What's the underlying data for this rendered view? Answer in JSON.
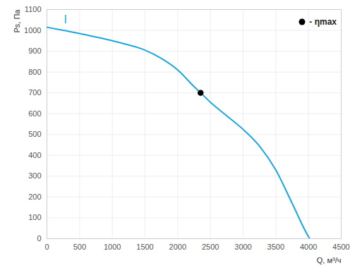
{
  "chart_data": {
    "type": "line",
    "x_label": "Q, м³/ч",
    "y_label": "Ps, Па",
    "series": [
      {
        "name": "I",
        "type": "line",
        "color": "#1aa7df",
        "x": [
          0,
          250,
          500,
          750,
          1000,
          1250,
          1500,
          1750,
          2000,
          2250,
          2350,
          2500,
          2750,
          3000,
          3250,
          3500,
          3750,
          4000,
          4020
        ],
        "values": [
          1015,
          1000,
          985,
          968,
          950,
          930,
          905,
          865,
          810,
          730,
          700,
          655,
          590,
          525,
          445,
          330,
          170,
          10,
          0
        ]
      },
      {
        "name": "- ηmax",
        "type": "scatter",
        "marker": "circle",
        "color": "#000000",
        "x": [
          2350
        ],
        "values": [
          700
        ]
      }
    ],
    "xlim": [
      0,
      4500
    ],
    "xticks": [
      0,
      500,
      1000,
      1500,
      2000,
      2500,
      3000,
      3500,
      4000,
      4500
    ],
    "ylim": [
      0,
      1100
    ],
    "yticks": [
      0,
      100,
      200,
      300,
      400,
      500,
      600,
      700,
      800,
      900,
      1000,
      1100
    ],
    "grid": true,
    "legend": "top-right"
  }
}
